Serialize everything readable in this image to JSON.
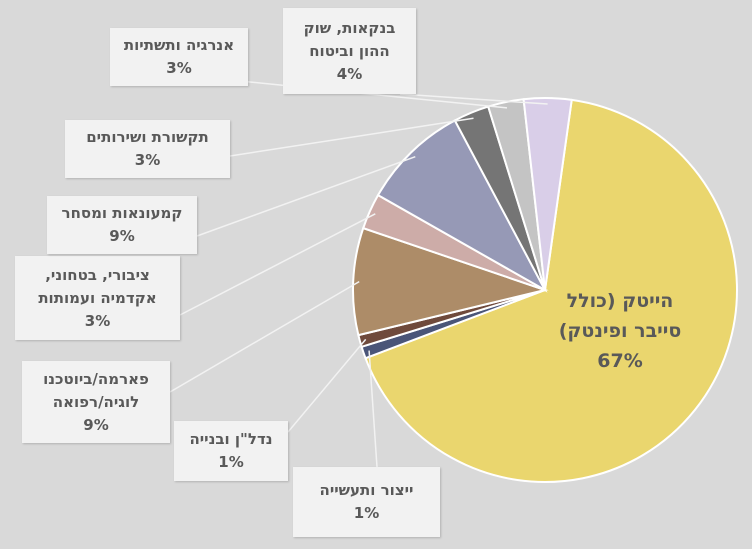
{
  "chart_data": {
    "type": "pie",
    "title": "",
    "slices": [
      {
        "label": "הייטק (כולל סייבר ופינטק)",
        "value": 67,
        "display": "67%",
        "color": "#ead66e"
      },
      {
        "label": "ייצור ותעשייה",
        "value": 1,
        "display": "1%",
        "color": "#4a5578"
      },
      {
        "label": "נדל\"ן ובנייה",
        "value": 1,
        "display": "1%",
        "color": "#6f4a3c"
      },
      {
        "label": "פארמה/ביוטכנולוגיה/רפואה",
        "value": 9,
        "display": "9%",
        "color": "#ad8c68"
      },
      {
        "label": "ציבורי, בטחוני, אקדמיה ועמותות",
        "value": 3,
        "display": "3%",
        "color": "#cdaca8"
      },
      {
        "label": "קמעונאות ומסחר",
        "value": 9,
        "display": "9%",
        "color": "#9699b6"
      },
      {
        "label": "תקשורת ושירותים",
        "value": 3,
        "display": "3%",
        "color": "#757575"
      },
      {
        "label": "אנרגיה ותשתיות",
        "value": 3,
        "display": "3%",
        "color": "#c4c4c4"
      },
      {
        "label": "בנקאות, שוק ההון וביטוח",
        "value": 4,
        "display": "4%",
        "color": "#d9cee8"
      }
    ],
    "start_angle_deg": 8,
    "legend": "none"
  },
  "labels": [
    {
      "lines": [
        "הייטק (כולל",
        "סייבר ופינטק)"
      ],
      "pct": "67%"
    },
    {
      "lines": [
        "ייצור ותעשייה"
      ],
      "pct": "1%"
    },
    {
      "lines": [
        "נדל\"ן ובנייה"
      ],
      "pct": "1%"
    },
    {
      "lines": [
        "פארמה/ביוטכנו",
        "לוגיה/רפואה"
      ],
      "pct": "9%"
    },
    {
      "lines": [
        "ציבורי, בטחוני,",
        "אקדמיה ועמותות"
      ],
      "pct": "3%"
    },
    {
      "lines": [
        "קמעונאות ומסחר"
      ],
      "pct": "9%"
    },
    {
      "lines": [
        "תקשורת ושירותים"
      ],
      "pct": "3%"
    },
    {
      "lines": [
        "אנרגיה ותשתיות"
      ],
      "pct": "3%"
    },
    {
      "lines": [
        "בנקאות, שוק",
        "ההון וביטוח"
      ],
      "pct": "4%"
    }
  ]
}
